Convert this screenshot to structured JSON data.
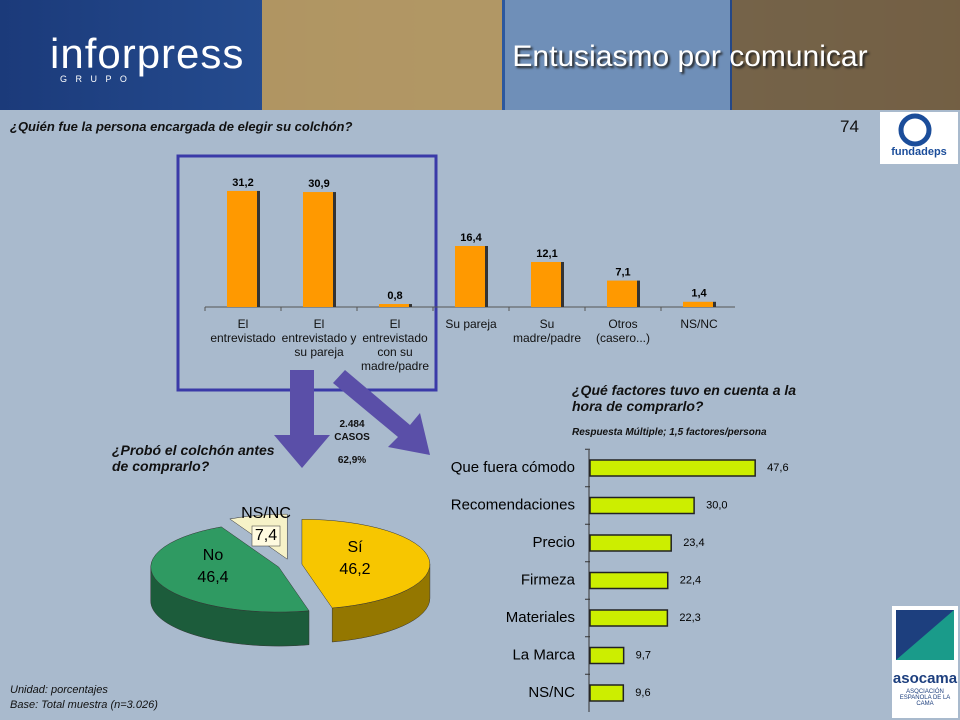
{
  "header": {
    "brand": "inforpress",
    "brand_sub": "G R U P O",
    "slogan": "Entusiasmo por comunicar",
    "page_number": "74",
    "logo_top": "fundadeps",
    "logo_bottom": "asocama",
    "logo_bottom_sub": "ASOCIACIÓN ESPAÑOLA DE LA CAMA"
  },
  "annotation": {
    "cases": "2.484",
    "cases_label": "CASOS",
    "cases_pct": "62,9%"
  },
  "footer": {
    "unit": "Unidad: porcentajes",
    "base": "Base: Total muestra (n=3.026)"
  },
  "chart_data": [
    {
      "type": "bar",
      "title": "¿Quién fue la persona encargada de elegir su colchón?",
      "categories": [
        "El entrevistado",
        "El entrevistado y su pareja",
        "El entrevistado con su madre/padre",
        "Su pareja",
        "Su madre/padre",
        "Otros (casero...)",
        "NS/NC"
      ],
      "values": [
        31.2,
        30.9,
        0.8,
        16.4,
        12.1,
        7.1,
        1.4
      ],
      "value_labels": [
        "31,2",
        "30,9",
        "0,8",
        "16,4",
        "12,1",
        "7,1",
        "1,4"
      ],
      "color": "#ff9900"
    },
    {
      "type": "pie",
      "title": "¿Probó el colchón antes de comprarlo?",
      "categories": [
        "Sí",
        "No",
        "NS/NC"
      ],
      "values": [
        46.2,
        46.4,
        7.4
      ],
      "value_labels": [
        "46,2",
        "46,4",
        "7,4"
      ],
      "colors": [
        "#f7c600",
        "#2f9a62",
        "#f6f2c8"
      ]
    },
    {
      "type": "hbar",
      "title": "¿Qué factores tuvo en cuenta a la hora de comprarlo?",
      "subtitle": "Respuesta Múltiple; 1,5 factores/persona",
      "categories": [
        "Que fuera cómodo",
        "Recomendaciones",
        "Precio",
        "Firmeza",
        "Materiales",
        "La Marca",
        "NS/NC"
      ],
      "values": [
        47.6,
        30.0,
        23.4,
        22.4,
        22.3,
        9.7,
        9.6
      ],
      "value_labels": [
        "47,6",
        "30,0",
        "23,4",
        "22,4",
        "22,3",
        "9,7",
        "9,6"
      ],
      "color": "#ccee00"
    }
  ]
}
